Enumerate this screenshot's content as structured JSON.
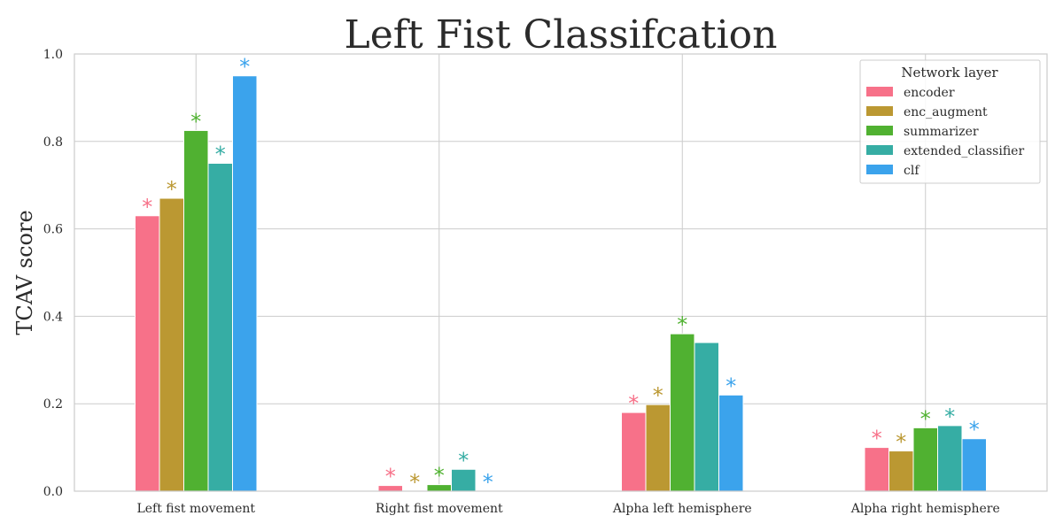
{
  "chart_data": {
    "type": "bar",
    "title": "Left Fist Classifcation",
    "xlabel": "",
    "ylabel": "TCAV score",
    "ylim": [
      0,
      1.0
    ],
    "yticks": [
      "0.0",
      "0.2",
      "0.4",
      "0.6",
      "0.8",
      "1.0"
    ],
    "categories": [
      "Left fist movement",
      "Right fist movement",
      "Alpha left hemisphere",
      "Alpha right hemisphere"
    ],
    "grid": true,
    "legend": {
      "title": "Network layer",
      "placement": "top-right"
    },
    "significance_marker": "*",
    "series": [
      {
        "name": "encoder",
        "color": "#f77189",
        "values": [
          0.63,
          0.013,
          0.18,
          0.1
        ],
        "significant": [
          true,
          true,
          true,
          true
        ]
      },
      {
        "name": "enc_augment",
        "color": "#bb9832",
        "values": [
          0.67,
          0.0,
          0.198,
          0.092
        ],
        "significant": [
          true,
          true,
          true,
          true
        ]
      },
      {
        "name": "summarizer",
        "color": "#50b131",
        "values": [
          0.825,
          0.015,
          0.36,
          0.145
        ],
        "significant": [
          true,
          true,
          true,
          true
        ]
      },
      {
        "name": "extended_classifier",
        "color": "#36ada4",
        "values": [
          0.75,
          0.05,
          0.34,
          0.15
        ],
        "significant": [
          true,
          true,
          false,
          true
        ]
      },
      {
        "name": "clf",
        "color": "#3ba3ec",
        "values": [
          0.95,
          0.0,
          0.22,
          0.12
        ],
        "significant": [
          true,
          true,
          true,
          true
        ]
      }
    ]
  }
}
